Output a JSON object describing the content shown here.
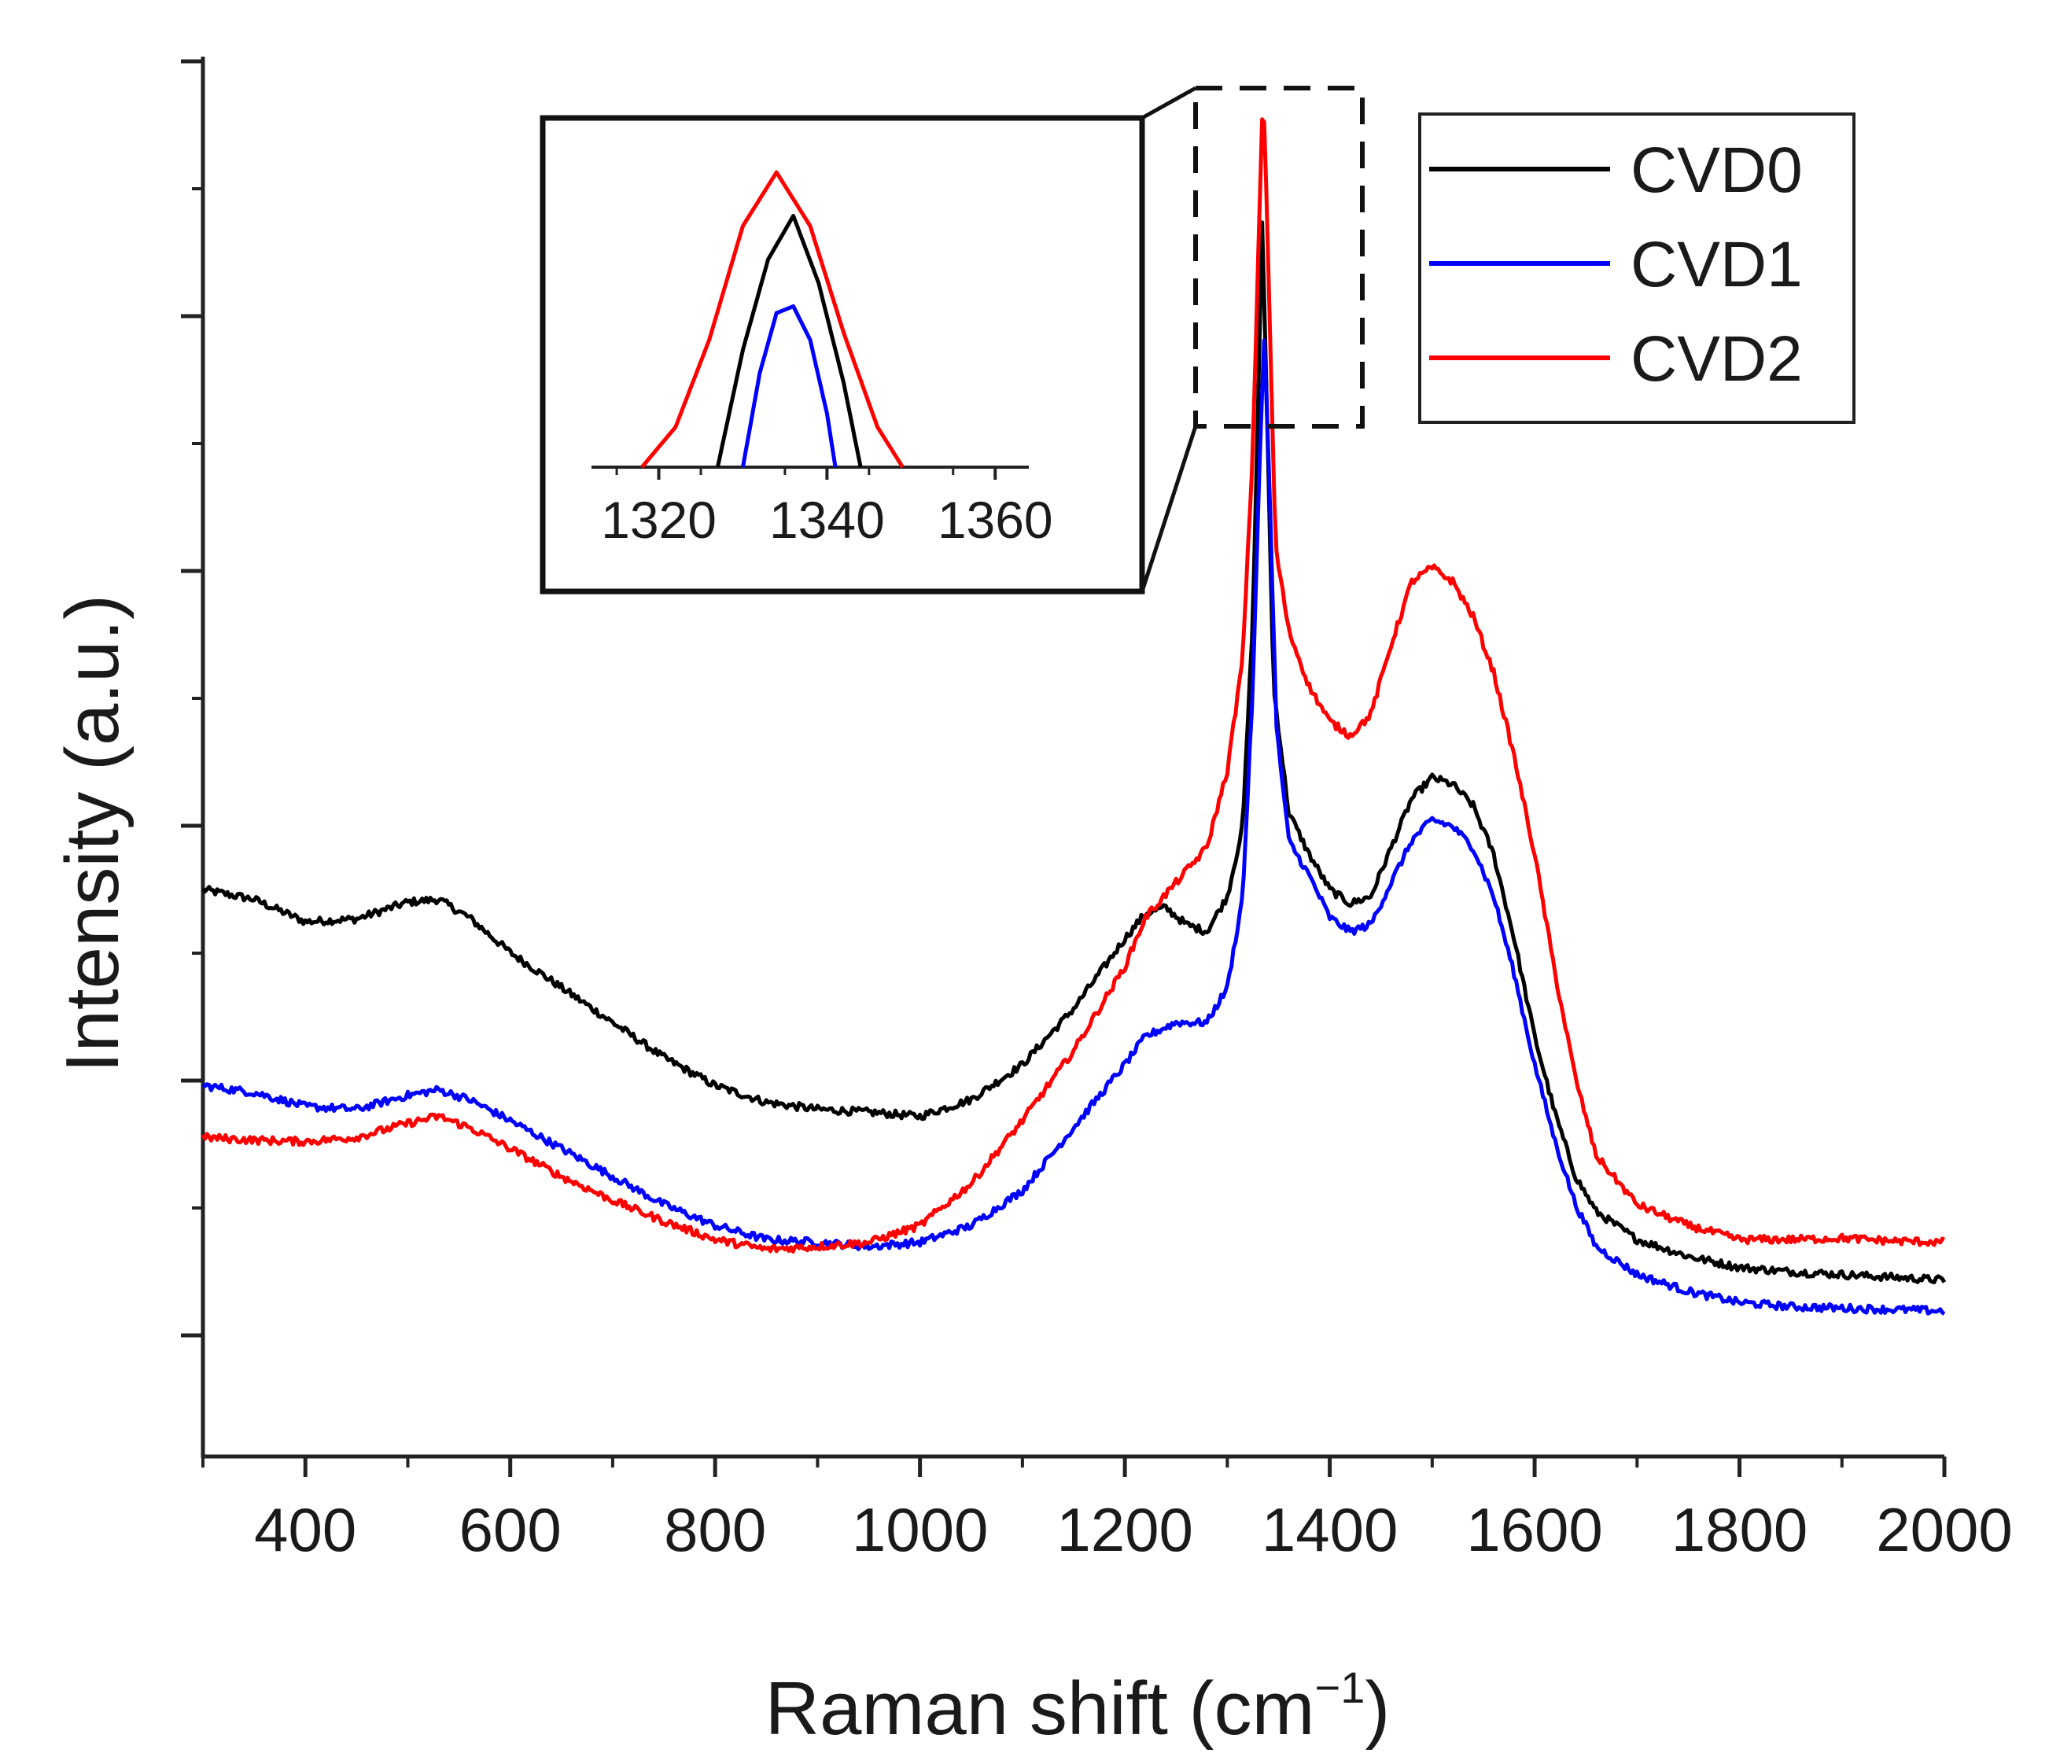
{
  "chart_data": {
    "type": "line",
    "title": "",
    "xlabel": "Raman shift (cm",
    "xlabel_sup": "−1",
    "xlabel_end": ")",
    "ylabel": "Intensity (a.u.)",
    "xlim": [
      300,
      2000
    ],
    "ylim": [
      0,
      100
    ],
    "x_ticks": [
      400,
      600,
      800,
      1000,
      1200,
      1400,
      1600,
      1800,
      2000
    ],
    "x_tick_labels": [
      "400",
      "600",
      "800",
      "1000",
      "1200",
      "1400",
      "1600",
      "1800",
      "2000"
    ],
    "grid": false,
    "legend_position": "top-right",
    "series": [
      {
        "name": "CVD0",
        "color": "#000000",
        "points": [
          [
            300,
            40.5
          ],
          [
            350,
            39.8
          ],
          [
            400,
            38.2
          ],
          [
            450,
            38.4
          ],
          [
            500,
            39.6
          ],
          [
            530,
            39.8
          ],
          [
            560,
            38.5
          ],
          [
            600,
            36.0
          ],
          [
            650,
            33.5
          ],
          [
            700,
            31.0
          ],
          [
            750,
            28.5
          ],
          [
            800,
            26.5
          ],
          [
            850,
            25.3
          ],
          [
            900,
            24.8
          ],
          [
            950,
            24.6
          ],
          [
            1000,
            24.3
          ],
          [
            1050,
            25.5
          ],
          [
            1100,
            28.0
          ],
          [
            1150,
            32.0
          ],
          [
            1200,
            37.0
          ],
          [
            1220,
            38.8
          ],
          [
            1240,
            39.2
          ],
          [
            1260,
            38.0
          ],
          [
            1280,
            37.5
          ],
          [
            1300,
            40.0
          ],
          [
            1315,
            45.0
          ],
          [
            1325,
            60.0
          ],
          [
            1330,
            75.0
          ],
          [
            1334,
            88.0
          ],
          [
            1338,
            77.0
          ],
          [
            1345,
            55.0
          ],
          [
            1360,
            46.0
          ],
          [
            1380,
            43.0
          ],
          [
            1400,
            40.5
          ],
          [
            1420,
            39.5
          ],
          [
            1440,
            40.0
          ],
          [
            1460,
            43.5
          ],
          [
            1480,
            47.0
          ],
          [
            1500,
            48.5
          ],
          [
            1520,
            48.0
          ],
          [
            1540,
            46.5
          ],
          [
            1560,
            43.0
          ],
          [
            1580,
            37.0
          ],
          [
            1600,
            30.0
          ],
          [
            1620,
            24.5
          ],
          [
            1640,
            20.0
          ],
          [
            1660,
            17.5
          ],
          [
            1700,
            15.5
          ],
          [
            1750,
            14.3
          ],
          [
            1800,
            13.5
          ],
          [
            1850,
            13.2
          ],
          [
            1900,
            13.0
          ],
          [
            1950,
            12.8
          ],
          [
            2000,
            12.6
          ]
        ]
      },
      {
        "name": "CVD1",
        "color": "#0000ff",
        "points": [
          [
            300,
            26.5
          ],
          [
            350,
            26.0
          ],
          [
            400,
            25.0
          ],
          [
            450,
            24.8
          ],
          [
            500,
            25.8
          ],
          [
            530,
            26.2
          ],
          [
            560,
            25.5
          ],
          [
            600,
            24.0
          ],
          [
            650,
            22.0
          ],
          [
            700,
            20.0
          ],
          [
            750,
            18.0
          ],
          [
            800,
            16.5
          ],
          [
            850,
            15.5
          ],
          [
            900,
            15.3
          ],
          [
            950,
            15.0
          ],
          [
            1000,
            15.3
          ],
          [
            1050,
            16.5
          ],
          [
            1100,
            19.0
          ],
          [
            1150,
            23.5
          ],
          [
            1200,
            28.0
          ],
          [
            1220,
            30.0
          ],
          [
            1250,
            31.0
          ],
          [
            1280,
            31.0
          ],
          [
            1300,
            33.5
          ],
          [
            1315,
            40.0
          ],
          [
            1325,
            55.0
          ],
          [
            1332,
            72.0
          ],
          [
            1336,
            80.0
          ],
          [
            1340,
            72.0
          ],
          [
            1348,
            52.0
          ],
          [
            1360,
            44.0
          ],
          [
            1380,
            41.5
          ],
          [
            1400,
            38.5
          ],
          [
            1420,
            37.5
          ],
          [
            1440,
            38.0
          ],
          [
            1460,
            41.0
          ],
          [
            1480,
            44.0
          ],
          [
            1500,
            45.5
          ],
          [
            1520,
            45.0
          ],
          [
            1540,
            43.5
          ],
          [
            1560,
            40.0
          ],
          [
            1580,
            34.5
          ],
          [
            1600,
            28.0
          ],
          [
            1620,
            22.5
          ],
          [
            1640,
            18.0
          ],
          [
            1660,
            15.0
          ],
          [
            1700,
            13.0
          ],
          [
            1750,
            11.8
          ],
          [
            1800,
            11.0
          ],
          [
            1850,
            10.7
          ],
          [
            1900,
            10.6
          ],
          [
            1950,
            10.5
          ],
          [
            2000,
            10.4
          ]
        ]
      },
      {
        "name": "CVD2",
        "color": "#ff0000",
        "points": [
          [
            300,
            22.8
          ],
          [
            350,
            22.6
          ],
          [
            400,
            22.5
          ],
          [
            450,
            22.8
          ],
          [
            500,
            23.8
          ],
          [
            530,
            24.3
          ],
          [
            560,
            23.5
          ],
          [
            600,
            22.0
          ],
          [
            650,
            20.0
          ],
          [
            700,
            18.3
          ],
          [
            750,
            16.8
          ],
          [
            800,
            15.5
          ],
          [
            850,
            14.8
          ],
          [
            900,
            15.0
          ],
          [
            950,
            15.3
          ],
          [
            1000,
            16.5
          ],
          [
            1050,
            19.5
          ],
          [
            1100,
            24.0
          ],
          [
            1150,
            29.0
          ],
          [
            1200,
            35.0
          ],
          [
            1220,
            38.5
          ],
          [
            1250,
            41.0
          ],
          [
            1280,
            43.5
          ],
          [
            1300,
            49.0
          ],
          [
            1315,
            57.0
          ],
          [
            1325,
            72.0
          ],
          [
            1331,
            88.0
          ],
          [
            1335,
            98.0
          ],
          [
            1339,
            88.0
          ],
          [
            1347,
            65.0
          ],
          [
            1360,
            59.0
          ],
          [
            1380,
            55.0
          ],
          [
            1400,
            52.5
          ],
          [
            1420,
            51.5
          ],
          [
            1440,
            53.0
          ],
          [
            1460,
            58.0
          ],
          [
            1480,
            62.5
          ],
          [
            1500,
            63.5
          ],
          [
            1520,
            62.5
          ],
          [
            1540,
            60.0
          ],
          [
            1560,
            56.0
          ],
          [
            1580,
            50.0
          ],
          [
            1600,
            43.0
          ],
          [
            1620,
            34.5
          ],
          [
            1640,
            27.0
          ],
          [
            1660,
            21.5
          ],
          [
            1700,
            18.0
          ],
          [
            1750,
            16.5
          ],
          [
            1800,
            15.5
          ],
          [
            1850,
            15.5
          ],
          [
            1900,
            15.6
          ],
          [
            1950,
            15.4
          ],
          [
            2000,
            15.3
          ]
        ]
      }
    ],
    "inset": {
      "xlim": [
        1312,
        1364
      ],
      "ylim": [
        0,
        1
      ],
      "x_ticks": [
        1320,
        1340,
        1360
      ],
      "x_tick_labels": [
        "1320",
        "1340",
        "1360"
      ],
      "series": [
        {
          "name": "CVD0",
          "color": "#000000",
          "points": [
            [
              1327,
              0.0
            ],
            [
              1330,
              0.35
            ],
            [
              1333,
              0.62
            ],
            [
              1336,
              0.75
            ],
            [
              1339,
              0.55
            ],
            [
              1342,
              0.25
            ],
            [
              1344,
              0.0
            ]
          ]
        },
        {
          "name": "CVD1",
          "color": "#0000ff",
          "points": [
            [
              1330,
              0.0
            ],
            [
              1332,
              0.28
            ],
            [
              1334,
              0.46
            ],
            [
              1336,
              0.48
            ],
            [
              1338,
              0.38
            ],
            [
              1340,
              0.16
            ],
            [
              1341,
              0.0
            ]
          ]
        },
        {
          "name": "CVD2",
          "color": "#ff0000",
          "points": [
            [
              1318,
              0.0
            ],
            [
              1322,
              0.12
            ],
            [
              1326,
              0.38
            ],
            [
              1330,
              0.72
            ],
            [
              1334,
              0.88
            ],
            [
              1338,
              0.72
            ],
            [
              1342,
              0.4
            ],
            [
              1346,
              0.12
            ],
            [
              1349,
              0.0
            ]
          ]
        }
      ]
    }
  }
}
